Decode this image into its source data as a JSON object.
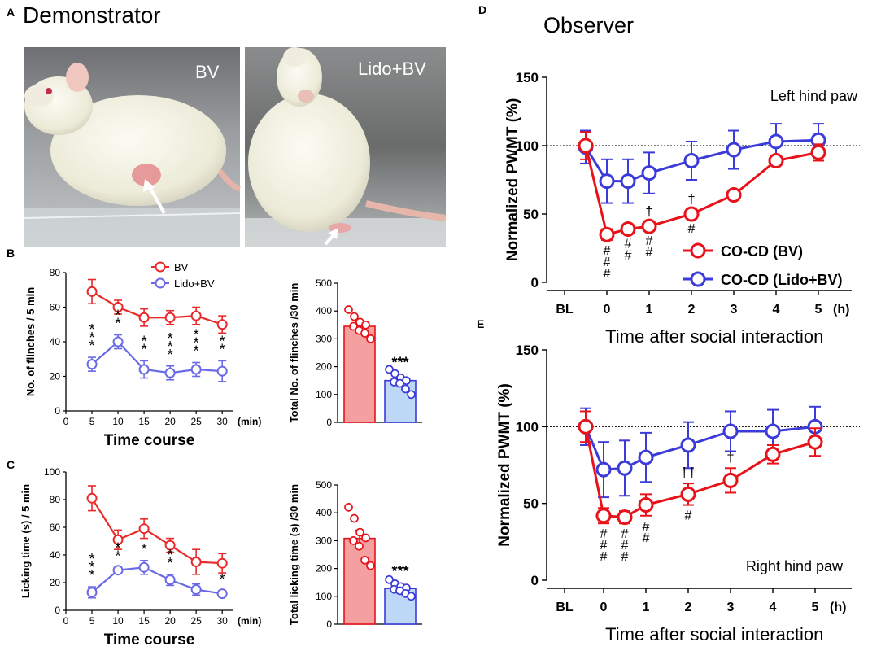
{
  "panel_a": {
    "letter": "A",
    "title": "Demonstrator",
    "photo_left_label": "BV",
    "photo_right_label": "Lido+BV"
  },
  "panel_d": {
    "letter": "D",
    "heading": "Observer"
  },
  "colors": {
    "red": "#e8131a",
    "blue": "#3b3bd9",
    "red_fill": "#f4a0a0",
    "blue_fill": "#bcd8f6",
    "bv_light": "#ea2a2a",
    "lido_light": "#6a6ae6"
  },
  "chart_data": [
    {
      "id": "B_line",
      "type": "line",
      "letter": "B",
      "xlabel": "Time course",
      "ylabel": "No. of flinches / 5 min",
      "x_unit": "(min)",
      "x": [
        5,
        10,
        15,
        20,
        25,
        30
      ],
      "x_ticks": [
        "0",
        "5",
        "10",
        "15",
        "20",
        "25",
        "30"
      ],
      "y_ticks": [
        "0",
        "20",
        "40",
        "60",
        "80"
      ],
      "xlim": [
        0,
        32
      ],
      "ylim": [
        0,
        80
      ],
      "series": [
        {
          "name": "BV",
          "color": "#ea2a2a",
          "values": [
            69,
            60,
            54,
            54,
            55,
            50
          ],
          "err": [
            7,
            4,
            5,
            4,
            5,
            5
          ]
        },
        {
          "name": "Lido+BV",
          "color": "#6a6ae6",
          "values": [
            27,
            40,
            24,
            22,
            24,
            23
          ],
          "err": [
            4,
            4,
            5,
            4,
            4,
            6
          ]
        }
      ],
      "significance": [
        {
          "x": 5,
          "text": "***"
        },
        {
          "x": 10,
          "text": "**"
        },
        {
          "x": 15,
          "text": "**"
        },
        {
          "x": 20,
          "text": "***"
        },
        {
          "x": 25,
          "text": "***"
        },
        {
          "x": 30,
          "text": "**"
        }
      ]
    },
    {
      "id": "B_bar",
      "type": "bar",
      "ylabel": "Total No. of flinches /30 min",
      "y_ticks": [
        "0",
        "100",
        "200",
        "300",
        "400",
        "500"
      ],
      "ylim": [
        0,
        500
      ],
      "values": [
        345,
        150
      ],
      "err": [
        15,
        12
      ],
      "significance": "***",
      "points": [
        [
          405,
          380,
          360,
          350,
          345,
          330,
          320,
          300
        ],
        [
          190,
          175,
          160,
          150,
          145,
          140,
          120,
          100
        ]
      ]
    },
    {
      "id": "C_line",
      "type": "line",
      "letter": "C",
      "xlabel": "Time course",
      "ylabel": "Licking time (s) / 5 min",
      "x_unit": "(min)",
      "x": [
        5,
        10,
        15,
        20,
        25,
        30
      ],
      "x_ticks": [
        "0",
        "5",
        "10",
        "15",
        "20",
        "25",
        "30"
      ],
      "y_ticks": [
        "0",
        "20",
        "40",
        "60",
        "80",
        "100"
      ],
      "xlim": [
        0,
        32
      ],
      "ylim": [
        0,
        100
      ],
      "series": [
        {
          "name": "BV",
          "color": "#ea2a2a",
          "values": [
            81,
            51,
            59,
            47,
            35,
            34
          ],
          "err": [
            9,
            7,
            7,
            5,
            9,
            7
          ]
        },
        {
          "name": "Lido+BV",
          "color": "#6a6ae6",
          "values": [
            13,
            29,
            31,
            22,
            15,
            12
          ],
          "err": [
            4,
            2,
            5,
            4,
            4,
            2
          ]
        }
      ],
      "significance": [
        {
          "x": 5,
          "text": "***"
        },
        {
          "x": 10,
          "text": "**"
        },
        {
          "x": 15,
          "text": "*"
        },
        {
          "x": 20,
          "text": "**"
        },
        {
          "x": 30,
          "text": "*"
        }
      ]
    },
    {
      "id": "C_bar",
      "type": "bar",
      "ylabel": "Total licking time (s) /30 min",
      "y_ticks": [
        "0",
        "100",
        "200",
        "300",
        "400",
        "500"
      ],
      "ylim": [
        0,
        500
      ],
      "values": [
        308,
        128
      ],
      "err": [
        30,
        10
      ],
      "significance": "***",
      "points": [
        [
          420,
          380,
          330,
          310,
          300,
          280,
          230,
          210
        ],
        [
          160,
          145,
          135,
          130,
          125,
          120,
          110,
          100
        ]
      ]
    },
    {
      "id": "D",
      "type": "line",
      "ylabel": "Normalized PWMT (%)",
      "xlabel": "Time after social interaction",
      "x_unit": "(h)",
      "x_ticks": [
        "BL",
        "0",
        "1",
        "2",
        "3",
        "4",
        "5"
      ],
      "y_ticks": [
        "0",
        "50",
        "100",
        "150"
      ],
      "ylim": [
        0,
        150
      ],
      "annotation": "Left hind paw",
      "series": [
        {
          "name": "CO-CD (BV)",
          "color": "#e8131a",
          "x": [
            -0.5,
            0,
            0.5,
            1,
            2,
            3,
            4,
            5
          ],
          "values": [
            100,
            35,
            39,
            41,
            50,
            64,
            89,
            95
          ],
          "err": [
            10,
            4,
            3,
            3,
            3,
            2,
            3,
            6
          ]
        },
        {
          "name": "CO-CD (Lido+BV)",
          "color": "#3b3bd9",
          "x": [
            -0.5,
            0,
            0.5,
            1,
            2,
            3,
            4,
            5
          ],
          "values": [
            99,
            74,
            74,
            80,
            89,
            97,
            103,
            104
          ],
          "err": [
            12,
            16,
            16,
            15,
            14,
            14,
            13,
            12
          ]
        }
      ],
      "hashes": [
        {
          "x": 0,
          "text": "###"
        },
        {
          "x": 0.5,
          "text": "##"
        },
        {
          "x": 1,
          "text": "##"
        },
        {
          "x": 2,
          "text": "#"
        }
      ],
      "daggers": [
        {
          "x": 1,
          "text": "†"
        },
        {
          "x": 2,
          "text": "†"
        }
      ]
    },
    {
      "id": "E",
      "type": "line",
      "letter": "E",
      "ylabel": "Normalized PWMT (%)",
      "xlabel": "Time after social interaction",
      "x_unit": "(h)",
      "x_ticks": [
        "BL",
        "0",
        "1",
        "2",
        "3",
        "4",
        "5"
      ],
      "y_ticks": [
        "0",
        "50",
        "100",
        "150"
      ],
      "ylim": [
        0,
        150
      ],
      "annotation": "Right hind paw",
      "series": [
        {
          "name": "CO-CD (BV)",
          "color": "#e8131a",
          "x": [
            -0.5,
            0,
            0.5,
            1,
            2,
            3,
            4,
            5
          ],
          "values": [
            100,
            42,
            41,
            49,
            56,
            65,
            82,
            90
          ],
          "err": [
            10,
            5,
            4,
            7,
            7,
            8,
            6,
            9
          ]
        },
        {
          "name": "CO-CD (Lido+BV)",
          "color": "#3b3bd9",
          "x": [
            -0.5,
            0,
            0.5,
            1,
            2,
            3,
            4,
            5
          ],
          "values": [
            100,
            72,
            73,
            80,
            88,
            97,
            97,
            100
          ],
          "err": [
            12,
            18,
            18,
            16,
            15,
            13,
            14,
            13
          ]
        }
      ],
      "hashes": [
        {
          "x": 0,
          "text": "###"
        },
        {
          "x": 0.5,
          "text": "###"
        },
        {
          "x": 1,
          "text": "##"
        },
        {
          "x": 2,
          "text": "#"
        }
      ],
      "daggers": [
        {
          "x": 2,
          "text": "††"
        },
        {
          "x": 3,
          "text": "†"
        }
      ]
    }
  ]
}
